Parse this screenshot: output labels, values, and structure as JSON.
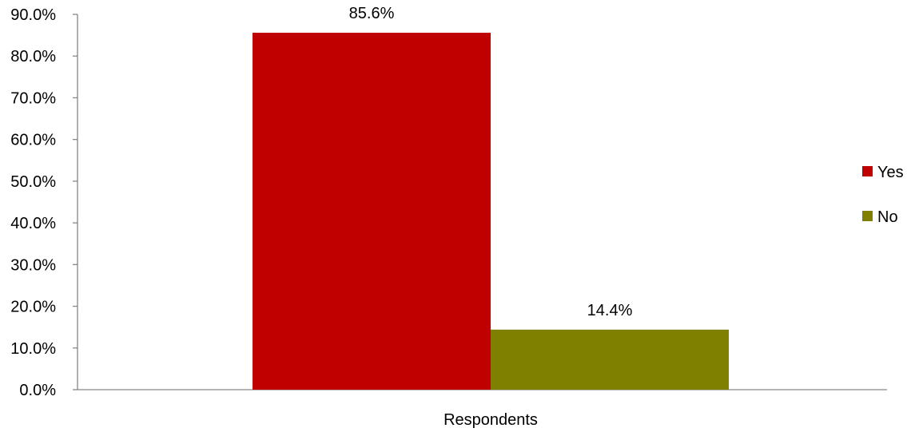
{
  "chart_data": {
    "type": "bar",
    "categories": [
      "Respondents"
    ],
    "series": [
      {
        "name": "Yes",
        "values": [
          85.6
        ],
        "label": "85.6%",
        "color": "#C00000"
      },
      {
        "name": "No",
        "values": [
          14.4
        ],
        "label": "14.4%",
        "color": "#808000"
      }
    ],
    "ylim": [
      0,
      90
    ],
    "yticks": [
      "0.0%",
      "10.0%",
      "20.0%",
      "30.0%",
      "40.0%",
      "50.0%",
      "60.0%",
      "70.0%",
      "80.0%",
      "90.0%"
    ],
    "ytick_values": [
      0,
      10,
      20,
      30,
      40,
      50,
      60,
      70,
      80,
      90
    ],
    "grid": false,
    "legend_position": "right",
    "axis_color": "#868686"
  }
}
